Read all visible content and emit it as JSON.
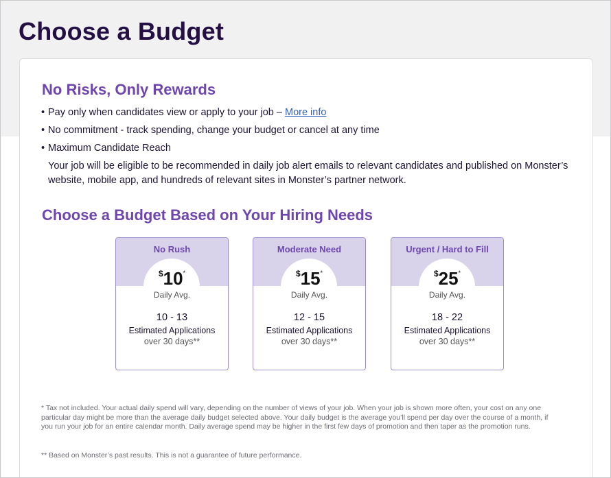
{
  "page": {
    "title": "Choose a Budget"
  },
  "intro": {
    "title": "No Risks, Only Rewards",
    "bullets": [
      {
        "text": "Pay only when candidates view or apply to your job – ",
        "link": "More info"
      },
      {
        "text": "No commitment - track spending, change your budget or cancel at any time"
      },
      {
        "text": "Maximum Candidate Reach"
      }
    ],
    "reach_description": "Your job will be eligible to be recommended in daily job alert emails to relevant candidates and published on Monster’s website, mobile app, and hundreds of relevant sites in Monster’s partner network."
  },
  "budget": {
    "title": "Choose a Budget Based on Your Hiring Needs",
    "tiers": [
      {
        "name": "No Rush",
        "currency": "$",
        "amount": "10",
        "asterisk": "*",
        "avg_label": "Daily Avg.",
        "range": "10 - 13",
        "estimate_label": "Estimated Applications",
        "period": "over 30 days**"
      },
      {
        "name": "Moderate Need",
        "currency": "$",
        "amount": "15",
        "asterisk": "*",
        "avg_label": "Daily Avg.",
        "range": "12 - 15",
        "estimate_label": "Estimated Applications",
        "period": "over 30 days**"
      },
      {
        "name": "Urgent / Hard to Fill",
        "currency": "$",
        "amount": "25",
        "asterisk": "*",
        "avg_label": "Daily Avg.",
        "range": "18 - 22",
        "estimate_label": "Estimated Applications",
        "period": "over 30 days**"
      }
    ]
  },
  "footnotes": {
    "tax": "* Tax not included. Your actual daily spend will vary, depending on the number of views of your job. When your job is shown more often, your cost on any one particular day might be more than the average daily budget selected above. Your daily budget is the average you’ll spend per day over the course of a month, if you run your job for an entire calendar month. Daily average spend may be higher in the first few days of promotion and then taper as the promotion runs.",
    "results": "** Based on Monster’s past results. This is not a guarantee of future performance."
  },
  "colors": {
    "heading": "#230f44",
    "accent_purple": "#6e46ae",
    "tier_header": "#d8d3ea",
    "tier_border": "#9c8ccb",
    "link": "#2f5fb3",
    "band": "#f1f1f2"
  }
}
